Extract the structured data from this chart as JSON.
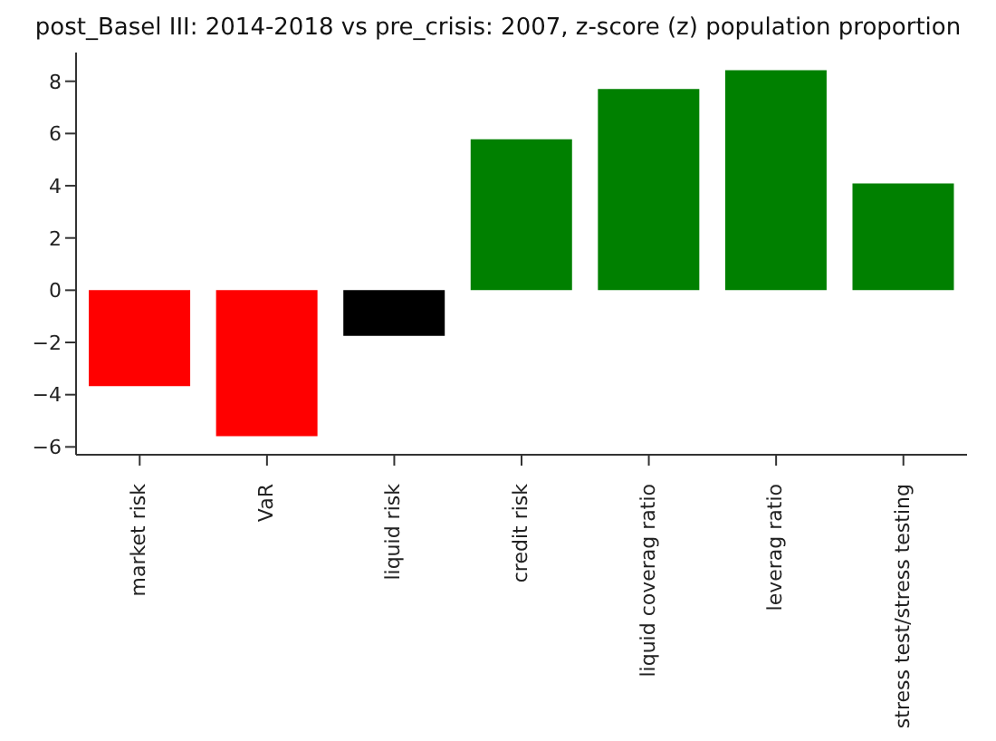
{
  "chart_data": {
    "type": "bar",
    "title": "post_Basel III: 2014-2018 vs pre_crisis: 2007, z-score (z) population proportion",
    "categories": [
      "market risk",
      "VaR",
      "liquid risk",
      "credit risk",
      "liquid coverag ratio",
      "leverag ratio",
      "stress test/stress testing"
    ],
    "values": [
      -3.67,
      -5.59,
      -1.75,
      5.78,
      7.7,
      8.42,
      4.09
    ],
    "colors": [
      "#ff0000",
      "#ff0000",
      "#000000",
      "#008000",
      "#008000",
      "#008000",
      "#008000"
    ],
    "ylim": [
      -6.3,
      9.1
    ],
    "yticks": [
      -6,
      -4,
      -2,
      0,
      2,
      4,
      6,
      8
    ],
    "grid": false,
    "legend": false
  }
}
